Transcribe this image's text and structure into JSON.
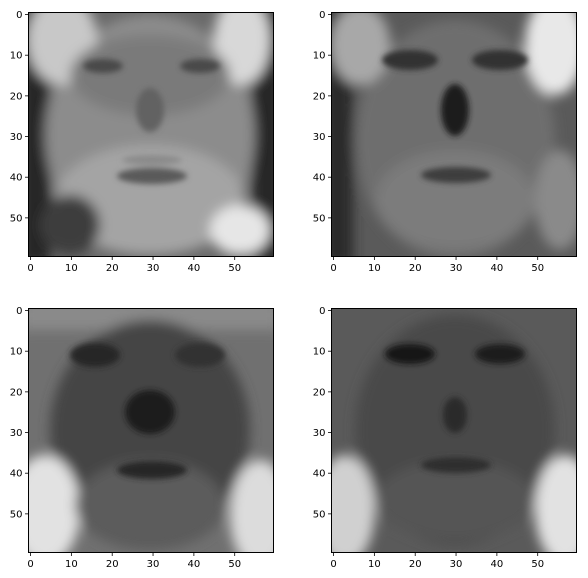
{
  "chart_data": [
    {
      "type": "heatmap",
      "colormap": "gray",
      "image_size": [
        60,
        60
      ],
      "xlim": [
        0,
        59
      ],
      "ylim": [
        59,
        0
      ],
      "xticks": [
        0,
        10,
        20,
        30,
        40,
        50
      ],
      "yticks": [
        0,
        10,
        20,
        30,
        40,
        50
      ],
      "xtick_labels": [
        "0",
        "10",
        "20",
        "30",
        "40",
        "50"
      ],
      "ytick_labels": [
        "0",
        "10",
        "20",
        "30",
        "40",
        "50"
      ],
      "title": "",
      "xlabel": "",
      "ylabel": ""
    },
    {
      "type": "heatmap",
      "colormap": "gray",
      "image_size": [
        60,
        60
      ],
      "xlim": [
        0,
        59
      ],
      "ylim": [
        59,
        0
      ],
      "xticks": [
        0,
        10,
        20,
        30,
        40,
        50
      ],
      "yticks": [
        0,
        10,
        20,
        30,
        40,
        50
      ],
      "xtick_labels": [
        "0",
        "10",
        "20",
        "30",
        "40",
        "50"
      ],
      "ytick_labels": [
        "0",
        "10",
        "20",
        "30",
        "40",
        "50"
      ],
      "title": "",
      "xlabel": "",
      "ylabel": ""
    },
    {
      "type": "heatmap",
      "colormap": "gray",
      "image_size": [
        60,
        60
      ],
      "xlim": [
        0,
        59
      ],
      "ylim": [
        59,
        0
      ],
      "xticks": [
        0,
        10,
        20,
        30,
        40,
        50
      ],
      "yticks": [
        0,
        10,
        20,
        30,
        40,
        50
      ],
      "xtick_labels": [
        "0",
        "10",
        "20",
        "30",
        "40",
        "50"
      ],
      "ytick_labels": [
        "0",
        "10",
        "20",
        "30",
        "40",
        "50"
      ],
      "title": "",
      "xlabel": "",
      "ylabel": ""
    },
    {
      "type": "heatmap",
      "colormap": "gray",
      "image_size": [
        60,
        60
      ],
      "xlim": [
        0,
        59
      ],
      "ylim": [
        59,
        0
      ],
      "xticks": [
        0,
        10,
        20,
        30,
        40,
        50
      ],
      "yticks": [
        0,
        10,
        20,
        30,
        40,
        50
      ],
      "xtick_labels": [
        "0",
        "10",
        "20",
        "30",
        "40",
        "50"
      ],
      "ytick_labels": [
        "0",
        "10",
        "20",
        "30",
        "40",
        "50"
      ],
      "title": "",
      "xlabel": "",
      "ylabel": ""
    }
  ]
}
